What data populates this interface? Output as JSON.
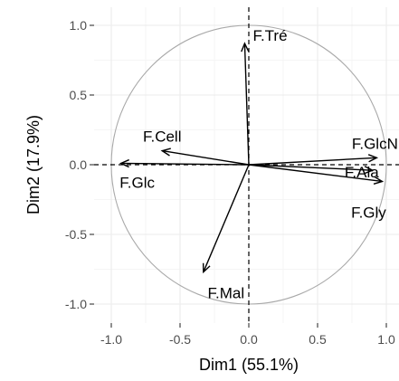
{
  "chart_data": {
    "type": "scatter",
    "subtype": "pca-variable-correlation-circle",
    "title": "",
    "xlabel": "Dim1 (55.1%)",
    "ylabel": "Dim2 (17.9%)",
    "xlim": [
      -1.05,
      1.05
    ],
    "ylim": [
      -1.08,
      1.08
    ],
    "xticks": [
      -1.0,
      -0.5,
      0.0,
      0.5,
      1.0
    ],
    "xtick_labels": [
      "-1.0",
      "-0.5",
      "0.0",
      "0.5",
      "1.0"
    ],
    "yticks": [
      -1.0,
      -0.5,
      0.0,
      0.5,
      1.0
    ],
    "ytick_labels": [
      "-1.0",
      "-0.5",
      "0.0",
      "0.5",
      "1.0"
    ],
    "grid": true,
    "unit_circle": true,
    "reference_lines": "dashed lines at x=0 and y=0",
    "series": [
      {
        "label": "F.Tré",
        "x": -0.03,
        "y": 0.87
      },
      {
        "label": "F.Cell",
        "x": -0.63,
        "y": 0.1
      },
      {
        "label": "F.GlcN",
        "x": 0.93,
        "y": 0.05
      },
      {
        "label": "F.Glc",
        "x": -0.93,
        "y": 0.01
      },
      {
        "label": "F.Ala",
        "x": 0.9,
        "y": -0.04
      },
      {
        "label": "F.Gly",
        "x": 0.97,
        "y": -0.12
      },
      {
        "label": "F.Mal",
        "x": -0.33,
        "y": -0.77
      }
    ],
    "colors": {
      "background": "#ffffff",
      "grid_major": "#ebebeb",
      "grid_minor": "#f5f5f5",
      "circle": "#a9a9a9",
      "arrow": "#000000",
      "tick": "#4d4d4d"
    }
  }
}
